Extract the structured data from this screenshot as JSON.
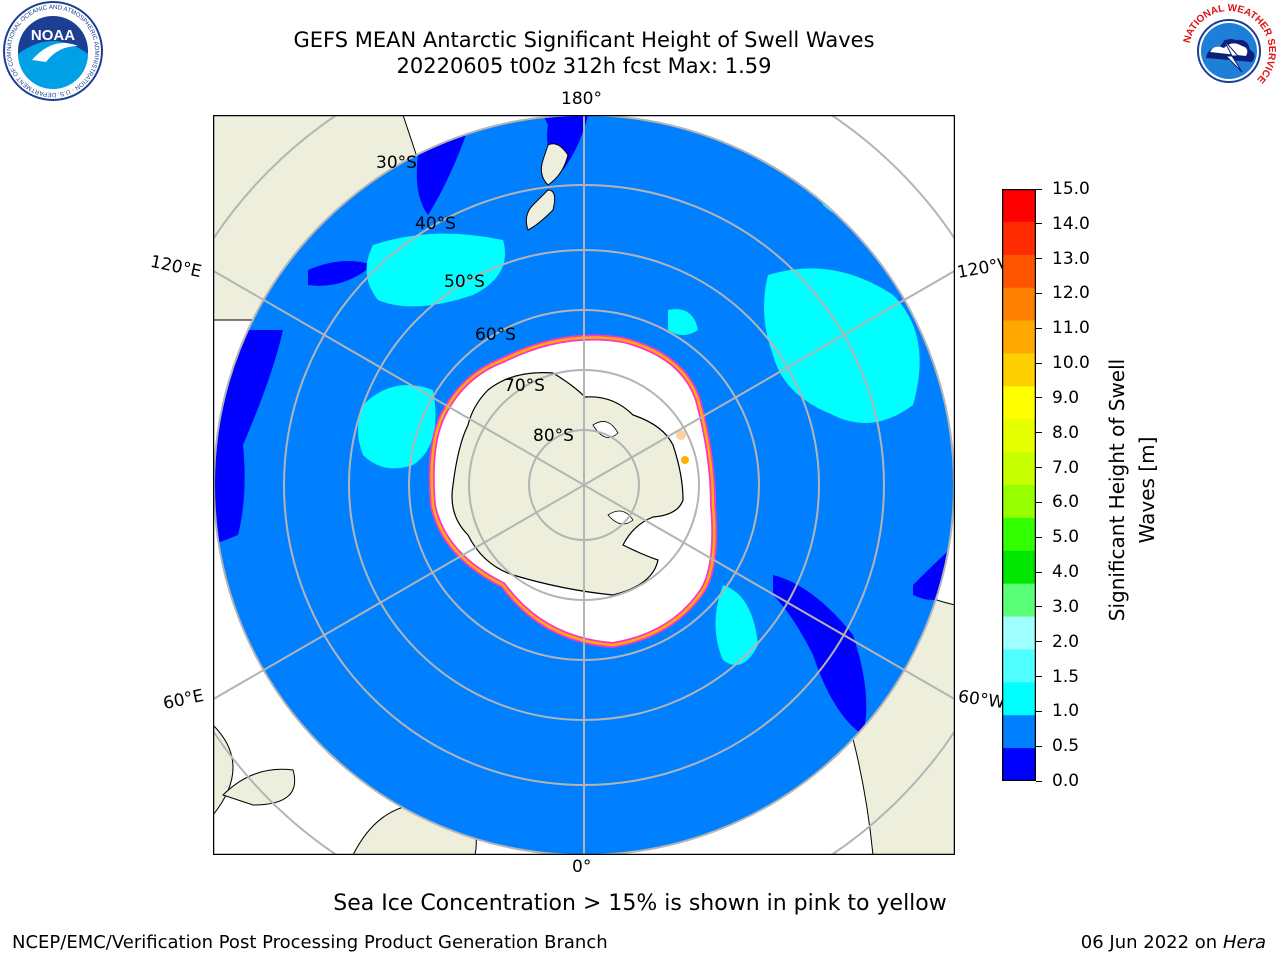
{
  "title": {
    "line1": "GEFS MEAN Antarctic Significant Height of Swell Waves",
    "line2": "20220605 t00z 312h fcst   Max: 1.59"
  },
  "map": {
    "projection": "south-polar-stereographic",
    "longitude_labels": [
      "180°",
      "120°E",
      "120°W",
      "60°E",
      "60°W",
      "0°"
    ],
    "latitude_labels": [
      "30°S",
      "40°S",
      "50°S",
      "60°S",
      "70°S",
      "80°S"
    ],
    "colors": {
      "ocean": "#0080ff",
      "deep_blue": "#0000ff",
      "cyan": "#00ffff",
      "land": "#eeeedc",
      "ice_interior": "#ffffff",
      "ice_edge_pink": "#ff33cc",
      "ice_edge_orange": "#ffb000",
      "ice_edge_yellow": "#ffe050",
      "grid": "#b4b4b4"
    }
  },
  "colorbar": {
    "label_line1": "Significant Height of Swell",
    "label_line2": "Waves [m]",
    "ticks": [
      "15.0",
      "14.0",
      "13.0",
      "12.0",
      "11.0",
      "10.0",
      "9.0",
      "8.0",
      "7.0",
      "6.0",
      "5.0",
      "4.0",
      "3.0",
      "2.0",
      "1.5",
      "1.0",
      "0.5",
      "0.0"
    ],
    "colors": [
      "#ff0000",
      "#ff2a00",
      "#ff5500",
      "#ff8000",
      "#ffa800",
      "#ffd000",
      "#ffff00",
      "#e6ff00",
      "#c8ff00",
      "#96ff00",
      "#32ff00",
      "#00e600",
      "#5aff78",
      "#a0ffff",
      "#50ffff",
      "#00ffff",
      "#0080ff",
      "#0000ff"
    ]
  },
  "logos": {
    "left": {
      "text": "NOAA",
      "ring_text": "NATIONAL OCEANIC AND ATMOSPHERIC ADMINISTRATION · U.S. DEPARTMENT OF COMMERCE"
    },
    "right": {
      "ring_text": "NATIONAL WEATHER SERVICE"
    }
  },
  "subnote": "Sea Ice Concentration > 15% is shown in pink to yellow",
  "footer": {
    "credit": "NCEP/EMC/Verification Post Processing Product Generation Branch",
    "date": "06 Jun 2022 on",
    "machine": "Hera"
  }
}
